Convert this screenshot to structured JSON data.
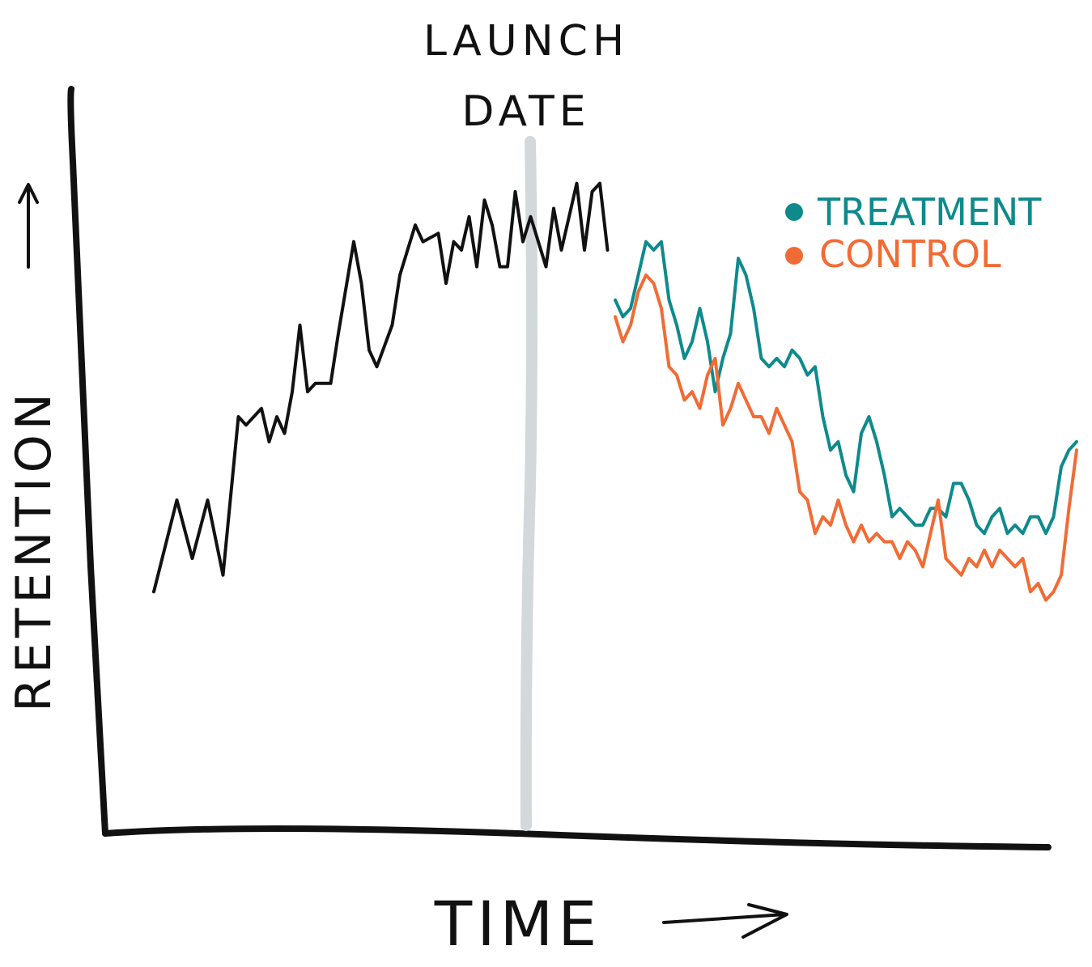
{
  "chart_data": {
    "type": "line",
    "title": "",
    "xlabel": "TIME",
    "ylabel": "RETENTION",
    "grid": false,
    "legend_position": "top-right",
    "annotations": [
      {
        "text_line1": "LAUNCH",
        "text_line2": "DATE",
        "x": 60
      }
    ],
    "xlim": [
      0,
      120
    ],
    "ylim": [
      0,
      100
    ],
    "series": [
      {
        "name": "",
        "color": "#111111",
        "x": [
          0,
          3,
          5,
          7,
          9,
          11,
          12,
          14,
          15,
          16,
          17,
          18,
          19,
          20,
          21,
          23,
          24,
          26,
          27,
          28,
          29,
          31,
          32,
          34,
          35,
          37,
          38,
          39,
          40,
          41,
          42,
          43,
          44,
          45,
          46,
          47,
          48,
          49,
          50,
          51,
          52,
          53,
          54,
          55,
          56,
          57,
          58,
          59
        ],
        "y": [
          29,
          40,
          33,
          40,
          31,
          50,
          49,
          51,
          47,
          50,
          48,
          53,
          61,
          53,
          54,
          54,
          60,
          71,
          66,
          58,
          56,
          61,
          67,
          73,
          71,
          72,
          66,
          71,
          70,
          74,
          68,
          76,
          73,
          68,
          68,
          77,
          71,
          74,
          71,
          68,
          75,
          70,
          74,
          78,
          70,
          77,
          78,
          70
        ]
      },
      {
        "name": "TREATMENT",
        "color": "#0f8a8c",
        "x": [
          60,
          61,
          62,
          63,
          64,
          65,
          66,
          67,
          68,
          69,
          70,
          71,
          72,
          73,
          74,
          75,
          76,
          77,
          78,
          79,
          80,
          81,
          82,
          83,
          84,
          85,
          86,
          87,
          88,
          89,
          90,
          91,
          92,
          93,
          94,
          95,
          96,
          97,
          98,
          99,
          100,
          101,
          102,
          103,
          104,
          105,
          106,
          107,
          108,
          109,
          110,
          111,
          112,
          113,
          114,
          115,
          116,
          117,
          118,
          119,
          120
        ],
        "y": [
          64,
          62,
          63,
          67,
          71,
          70,
          71,
          64,
          61,
          57,
          59,
          63,
          59,
          53,
          57,
          60,
          69,
          67,
          63,
          57,
          56,
          57,
          56,
          58,
          57,
          55,
          56,
          50,
          46,
          47,
          43,
          41,
          48,
          50,
          47,
          43,
          38,
          39,
          38,
          37,
          37,
          39,
          39,
          38,
          42,
          42,
          40,
          37,
          36,
          38,
          39,
          36,
          37,
          36,
          38,
          38,
          36,
          38,
          44,
          46,
          47
        ]
      },
      {
        "name": "CONTROL",
        "color": "#f26b34",
        "x": [
          60,
          61,
          62,
          63,
          64,
          65,
          66,
          67,
          68,
          69,
          70,
          71,
          72,
          73,
          74,
          75,
          76,
          77,
          78,
          79,
          80,
          81,
          82,
          83,
          84,
          85,
          86,
          87,
          88,
          89,
          90,
          91,
          92,
          93,
          94,
          95,
          96,
          97,
          98,
          99,
          100,
          101,
          102,
          103,
          104,
          105,
          106,
          107,
          108,
          109,
          110,
          111,
          112,
          113,
          114,
          115,
          116,
          117,
          118,
          119,
          120
        ],
        "y": [
          62,
          59,
          61,
          65,
          67,
          66,
          63,
          56,
          55,
          52,
          53,
          51,
          55,
          57,
          49,
          51,
          54,
          52,
          50,
          50,
          48,
          51,
          49,
          47,
          41,
          40,
          36,
          38,
          37,
          40,
          37,
          35,
          37,
          35,
          36,
          35,
          35,
          33,
          35,
          34,
          32,
          36,
          40,
          33,
          32,
          31,
          33,
          32,
          34,
          32,
          34,
          33,
          32,
          33,
          29,
          30,
          28,
          29,
          31,
          39,
          46
        ]
      }
    ]
  },
  "legend": {
    "items": [
      {
        "label": "TREATMENT",
        "color": "#0f8a8c"
      },
      {
        "label": "CONTROL",
        "color": "#f26b34"
      }
    ]
  },
  "marker": {
    "color": "#d3d8db"
  }
}
